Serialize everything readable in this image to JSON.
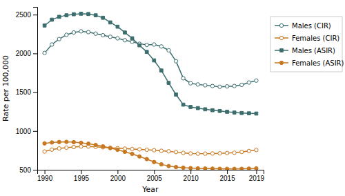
{
  "chart_data": {
    "type": "line",
    "xlabel": "Year",
    "ylabel": "Rate per 100,000",
    "x": [
      1990,
      1991,
      1992,
      1993,
      1994,
      1995,
      1996,
      1997,
      1998,
      1999,
      2000,
      2001,
      2002,
      2003,
      2004,
      2005,
      2006,
      2007,
      2008,
      2009,
      2010,
      2011,
      2012,
      2013,
      2014,
      2015,
      2016,
      2017,
      2018,
      2019
    ],
    "series": [
      {
        "name": "Males (CIR)",
        "color": "#3d6e6e",
        "marker": "circle-open",
        "values": [
          2005,
          2115,
          2185,
          2240,
          2270,
          2285,
          2275,
          2255,
          2235,
          2215,
          2195,
          2170,
          2150,
          2125,
          2110,
          2115,
          2090,
          2040,
          1900,
          1680,
          1615,
          1600,
          1590,
          1580,
          1570,
          1575,
          1580,
          1595,
          1625,
          1650
        ]
      },
      {
        "name": "Females (CIR)",
        "color": "#c87820",
        "marker": "circle-open",
        "values": [
          735,
          760,
          775,
          785,
          793,
          800,
          800,
          795,
          790,
          783,
          778,
          773,
          768,
          763,
          758,
          752,
          745,
          738,
          728,
          718,
          710,
          708,
          708,
          710,
          712,
          716,
          720,
          730,
          742,
          755
        ]
      },
      {
        "name": "Males (ASIR)",
        "color": "#3d6e6e",
        "marker": "square",
        "values": [
          2360,
          2435,
          2472,
          2492,
          2505,
          2512,
          2508,
          2492,
          2460,
          2400,
          2345,
          2270,
          2195,
          2105,
          2020,
          1910,
          1780,
          1620,
          1470,
          1340,
          1310,
          1295,
          1280,
          1268,
          1258,
          1248,
          1238,
          1232,
          1228,
          1225
        ]
      },
      {
        "name": "Females (ASIR)",
        "color": "#c87820",
        "marker": "circle",
        "values": [
          840,
          852,
          858,
          860,
          856,
          848,
          836,
          820,
          802,
          780,
          758,
          732,
          705,
          672,
          638,
          600,
          570,
          548,
          535,
          527,
          522,
          518,
          516,
          515,
          513,
          512,
          512,
          513,
          515,
          518
        ]
      }
    ],
    "xlim": [
      1989,
      2020
    ],
    "xticks": [
      1990,
      1995,
      2000,
      2005,
      2010,
      2015,
      2019
    ],
    "ylim": [
      500,
      2600
    ],
    "yticks": [
      500,
      1000,
      1500,
      2000,
      2500
    ],
    "grid": false,
    "legend": "right"
  }
}
